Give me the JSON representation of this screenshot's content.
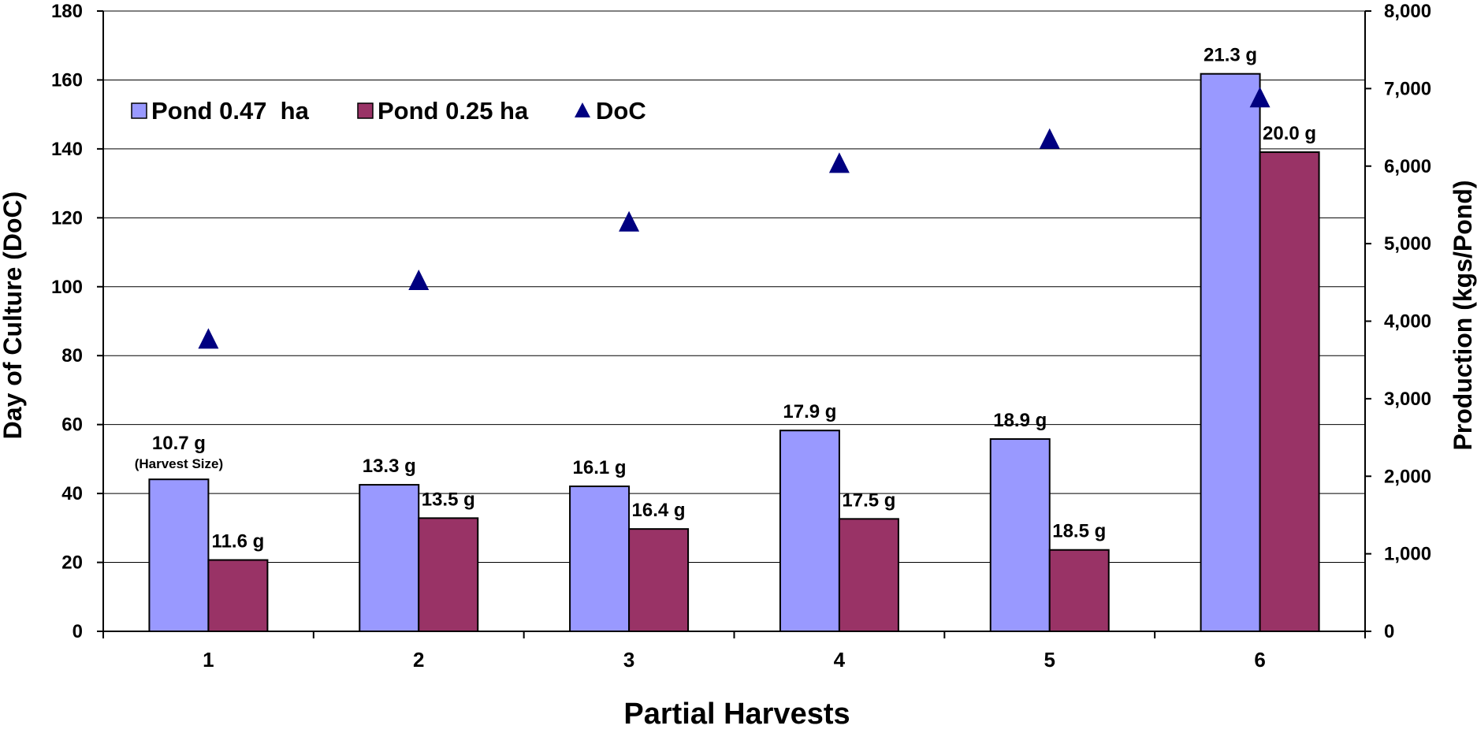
{
  "chart_data": {
    "type": "bar",
    "categories": [
      "1",
      "2",
      "3",
      "4",
      "5",
      "6"
    ],
    "xlabel": "Partial Harvests",
    "ylabel": "Day of Culture (DoC)",
    "y2label": "Production (kgs/Pond)",
    "ylim": [
      0,
      180
    ],
    "y2lim": [
      0,
      8000
    ],
    "yticks": [
      "0",
      "20",
      "40",
      "60",
      "80",
      "100",
      "120",
      "140",
      "160",
      "180"
    ],
    "y2ticks": [
      "0",
      "1,000",
      "2,000",
      "3,000",
      "4,000",
      "5,000",
      "6,000",
      "7,000",
      "8,000"
    ],
    "grid": true,
    "legend_position": "top-left",
    "series": [
      {
        "name": "Pond 0.47  ha",
        "type": "bar",
        "axis": "right",
        "color": "#9999ff",
        "values": [
          1960,
          1890,
          1870,
          2590,
          2480,
          7190
        ],
        "labels": [
          "10.7 g",
          "13.3 g",
          "16.1 g",
          "17.9 g",
          "18.9 g",
          "21.3 g"
        ]
      },
      {
        "name": "Pond 0.25 ha",
        "type": "bar",
        "axis": "right",
        "color": "#993366",
        "values": [
          920,
          1460,
          1320,
          1450,
          1050,
          6180
        ],
        "labels": [
          "11.6 g",
          "13.5 g",
          "16.4 g",
          "17.5 g",
          "18.5 g",
          "20.0 g"
        ]
      },
      {
        "name": "DoC",
        "type": "scatter",
        "marker": "triangle",
        "axis": "left",
        "color": "#000080",
        "values": [
          85,
          102,
          119,
          136,
          143,
          155
        ]
      }
    ],
    "annotation": "(Harvest Size)"
  }
}
